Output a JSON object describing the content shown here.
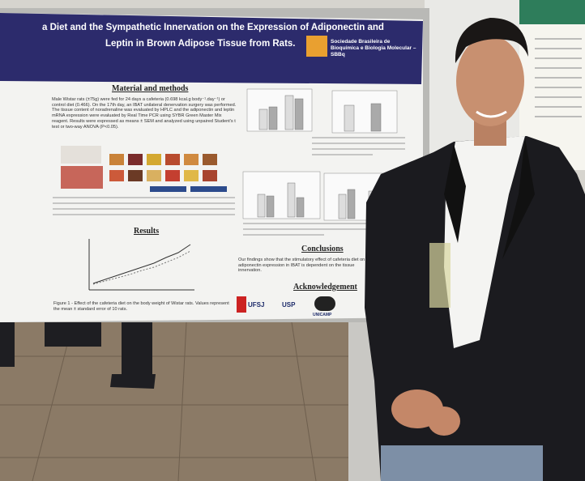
{
  "poster": {
    "title_lines": [
      "a Diet and the Sympathetic Innervation on the Expression of Adiponectin and",
      "Leptin in Brown Adipose Tissue from Rats.",
      ""
    ],
    "society": "Sociedade Brasileira de Bioquímica e Biologia Molecular – SBBq",
    "sections": [
      {
        "heading": "Material and methods",
        "text": "Male Wistar rats (±75g) were fed for 24 days a cafeteria (0.698 kcal.g body⁻¹.day⁻¹) or control diet (0.466). On the 17th day, an IBAT unilateral denervation surgery was performed. The tissue content of noradrenaline was evaluated by HPLC and the adiponectin and leptin mRNA expression were evaluated by Real Time PCR using SYBR Green Master Mix reagent. Results were expressed as means ± SEM and analyzed using unpaired Student's t test or two-way ANOVA (P<0.05)."
      },
      {
        "heading": "Results",
        "text": "Figure 1 - Effect of the cafeteria diet on the body weight of Wistar rats. Values represent the mean ± standard error of 10 rats."
      },
      {
        "heading": "Conclusions",
        "text": "Our findings show that the stimulatory effect of cafeteria diet on adiponectin expression in IBAT is dependent on the tissue innervation."
      },
      {
        "heading": "Acknowledgement",
        "text": ""
      }
    ],
    "logos": [
      "UFSJ",
      "USP",
      "UNICAMP"
    ]
  }
}
